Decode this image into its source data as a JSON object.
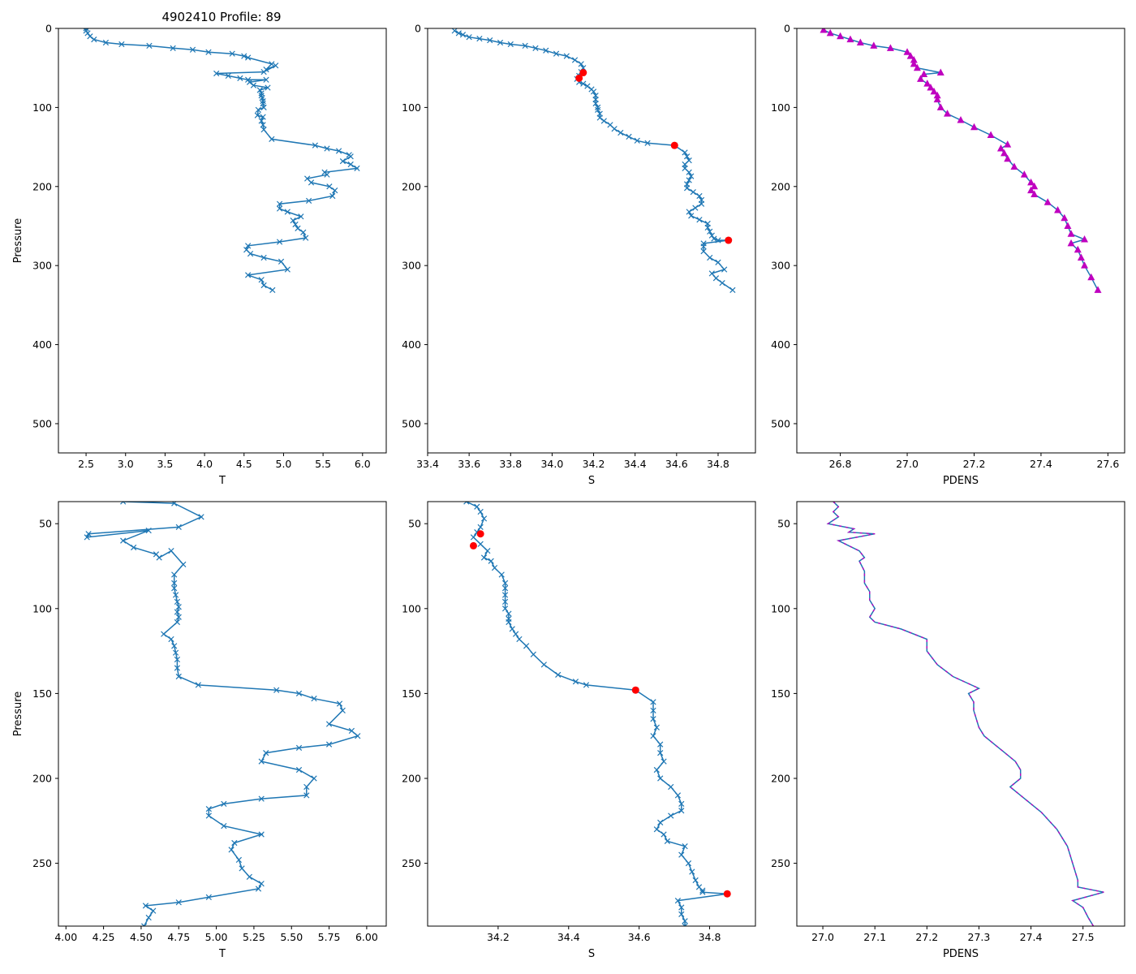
{
  "figure_title": "4902410 Profile: 89",
  "colors": {
    "line": "#1f77b4",
    "flagged": "#ff0000",
    "pdens_marker": "#bf00bf",
    "pdens_line": "#1f77b4"
  },
  "chart_data": [
    {
      "type": "line",
      "name": "temperature-full",
      "xlabel": "T",
      "ylabel": "Pressure",
      "xlim": [
        2.15,
        6.3
      ],
      "ylim": [
        537,
        0
      ],
      "xticks": [
        2.5,
        3.0,
        3.5,
        4.0,
        4.5,
        5.0,
        5.5,
        6.0
      ],
      "xtick_labels": [
        "2.5",
        "3.0",
        "3.5",
        "4.0",
        "4.5",
        "5.0",
        "5.5",
        "6.0"
      ],
      "yticks": [
        0,
        100,
        200,
        300,
        400,
        500
      ],
      "ytick_labels": [
        "0",
        "100",
        "200",
        "300",
        "400",
        "500"
      ],
      "marker": "x",
      "series": [
        {
          "name": "T profile",
          "x": [
            2.5,
            2.5,
            2.52,
            2.55,
            2.6,
            2.75,
            2.95,
            3.3,
            3.6,
            3.85,
            4.05,
            4.35,
            4.5,
            4.55,
            4.85,
            4.78,
            4.9,
            4.75,
            4.15,
            4.3,
            4.45,
            4.55,
            4.78,
            4.57,
            4.62,
            4.8,
            4.7,
            4.72,
            4.72,
            4.73,
            4.74,
            4.74,
            4.75,
            4.68,
            4.67,
            4.74,
            4.72,
            4.74,
            4.75,
            4.85,
            5.4,
            5.55,
            5.7,
            5.83,
            5.85,
            5.75,
            5.85,
            5.93,
            5.52,
            5.55,
            5.3,
            5.35,
            5.58,
            5.65,
            5.62,
            5.32,
            4.95,
            4.95,
            5.05,
            5.22,
            5.12,
            5.15,
            5.18,
            5.25,
            5.28,
            4.95,
            4.55,
            4.53,
            4.58,
            4.75,
            4.97,
            5.05,
            4.55,
            4.72,
            4.75,
            4.86
          ],
          "y": [
            0,
            3,
            6,
            10,
            14,
            18,
            20,
            22,
            25,
            27,
            30,
            32,
            35,
            37,
            45,
            52,
            47,
            55,
            57,
            60,
            63,
            65,
            65,
            68,
            72,
            75,
            78,
            82,
            85,
            88,
            92,
            95,
            100,
            103,
            110,
            112,
            117,
            122,
            128,
            140,
            148,
            152,
            155,
            160,
            162,
            168,
            172,
            177,
            182,
            185,
            190,
            195,
            200,
            205,
            212,
            218,
            222,
            228,
            232,
            238,
            243,
            248,
            253,
            258,
            265,
            270,
            275,
            280,
            285,
            290,
            295,
            305,
            312,
            318,
            325,
            331
          ]
        }
      ]
    },
    {
      "type": "line",
      "name": "salinity-full",
      "xlabel": "S",
      "ylabel": "",
      "xlim": [
        33.4,
        34.98
      ],
      "ylim": [
        537,
        0
      ],
      "xticks": [
        33.4,
        33.6,
        33.8,
        34.0,
        34.2,
        34.4,
        34.6,
        34.8
      ],
      "xtick_labels": [
        "33.4",
        "33.6",
        "33.8",
        "34.0",
        "34.2",
        "34.4",
        "34.6",
        "34.8"
      ],
      "yticks": [
        0,
        100,
        200,
        300,
        400,
        500
      ],
      "ytick_labels": [
        "0",
        "100",
        "200",
        "300",
        "400",
        "500"
      ],
      "marker": "x",
      "series": [
        {
          "name": "S profile",
          "x": [
            33.53,
            33.55,
            33.57,
            33.6,
            33.65,
            33.7,
            33.75,
            33.8,
            33.87,
            33.92,
            33.97,
            34.02,
            34.07,
            34.11,
            34.14,
            34.15,
            34.14,
            34.13,
            34.12,
            34.13,
            34.15,
            34.17,
            34.19,
            34.2,
            34.21,
            34.21,
            34.21,
            34.22,
            34.22,
            34.23,
            34.23,
            34.25,
            34.28,
            34.3,
            34.33,
            34.37,
            34.41,
            34.46,
            34.59,
            34.64,
            34.65,
            34.66,
            34.64,
            34.64,
            34.66,
            34.67,
            34.66,
            34.65,
            34.65,
            34.68,
            34.71,
            34.72,
            34.72,
            34.69,
            34.66,
            34.67,
            34.71,
            34.75,
            34.75,
            34.76,
            34.77,
            34.78,
            34.8,
            34.85,
            34.73,
            34.73,
            34.73,
            34.76,
            34.8,
            34.83,
            34.77,
            34.79,
            34.82,
            34.87
          ],
          "y": [
            3,
            6,
            8,
            11,
            13,
            15,
            18,
            20,
            22,
            25,
            28,
            32,
            35,
            40,
            45,
            50,
            55,
            60,
            64,
            68,
            70,
            73,
            77,
            80,
            85,
            90,
            95,
            100,
            103,
            108,
            113,
            117,
            122,
            127,
            132,
            137,
            142,
            145,
            148,
            157,
            162,
            167,
            172,
            177,
            182,
            187,
            192,
            197,
            202,
            207,
            212,
            217,
            222,
            227,
            232,
            237,
            242,
            247,
            252,
            257,
            262,
            266,
            268,
            268,
            272,
            276,
            282,
            290,
            296,
            305,
            310,
            316,
            322,
            331
          ]
        }
      ],
      "flagged_points": {
        "x": [
          34.15,
          34.13,
          34.59,
          34.85
        ],
        "y": [
          56,
          63,
          148,
          268
        ]
      }
    },
    {
      "type": "line",
      "name": "density-full",
      "xlabel": "PDENS",
      "ylabel": "",
      "xlim": [
        26.67,
        27.65
      ],
      "ylim": [
        537,
        0
      ],
      "xticks": [
        26.8,
        27.0,
        27.2,
        27.4,
        27.6
      ],
      "xtick_labels": [
        "26.8",
        "27.0",
        "27.2",
        "27.4",
        "27.6"
      ],
      "yticks": [
        0,
        100,
        200,
        300,
        400,
        500
      ],
      "ytick_labels": [
        "0",
        "100",
        "200",
        "300",
        "400",
        "500"
      ],
      "marker": "^",
      "series": [
        {
          "name": "PDENS profile",
          "x": [
            26.75,
            26.77,
            26.8,
            26.83,
            26.86,
            26.9,
            26.95,
            27.0,
            27.01,
            27.02,
            27.02,
            27.03,
            27.1,
            27.05,
            27.04,
            27.06,
            27.07,
            27.08,
            27.09,
            27.09,
            27.1,
            27.12,
            27.16,
            27.2,
            27.25,
            27.3,
            27.28,
            27.29,
            27.3,
            27.32,
            27.35,
            27.37,
            27.38,
            27.37,
            27.38,
            27.42,
            27.45,
            27.47,
            27.48,
            27.49,
            27.53,
            27.49,
            27.51,
            27.52,
            27.53,
            27.55,
            27.57
          ],
          "y": [
            2,
            6,
            10,
            14,
            18,
            22,
            25,
            30,
            35,
            40,
            45,
            50,
            56,
            58,
            64,
            70,
            75,
            80,
            85,
            90,
            100,
            108,
            116,
            125,
            135,
            147,
            152,
            158,
            165,
            175,
            185,
            195,
            200,
            205,
            210,
            220,
            230,
            240,
            250,
            260,
            267,
            272,
            280,
            290,
            300,
            315,
            331
          ]
        }
      ]
    },
    {
      "type": "line",
      "name": "temperature-zoom",
      "xlabel": "T",
      "ylabel": "Pressure",
      "xlim": [
        3.95,
        6.13
      ],
      "ylim": [
        287,
        37
      ],
      "xticks": [
        4.0,
        4.25,
        4.5,
        4.75,
        5.0,
        5.25,
        5.5,
        5.75,
        6.0
      ],
      "xtick_labels": [
        "4.00",
        "4.25",
        "4.50",
        "4.75",
        "5.00",
        "5.25",
        "5.50",
        "5.75",
        "6.00"
      ],
      "yticks": [
        50,
        100,
        150,
        200,
        250
      ],
      "ytick_labels": [
        "50",
        "100",
        "150",
        "200",
        "250"
      ],
      "marker": "x",
      "series": [
        {
          "name": "T profile",
          "x": [
            4.38,
            4.72,
            4.9,
            4.75,
            4.15,
            4.14,
            4.55,
            4.38,
            4.45,
            4.6,
            4.62,
            4.7,
            4.78,
            4.72,
            4.72,
            4.72,
            4.73,
            4.74,
            4.75,
            4.74,
            4.75,
            4.74,
            4.65,
            4.7,
            4.72,
            4.73,
            4.74,
            4.74,
            4.75,
            4.88,
            5.4,
            5.55,
            5.65,
            5.82,
            5.84,
            5.75,
            5.9,
            5.94,
            5.75,
            5.55,
            5.33,
            5.3,
            5.55,
            5.65,
            5.6,
            5.6,
            5.3,
            5.05,
            4.95,
            4.95,
            5.05,
            5.3,
            5.12,
            5.1,
            5.15,
            5.17,
            5.22,
            5.3,
            5.28,
            4.95,
            4.75,
            4.53,
            4.58,
            4.55,
            4.52
          ],
          "y": [
            37,
            38,
            46,
            52,
            56,
            58,
            54,
            60,
            64,
            68,
            70,
            66,
            74,
            80,
            85,
            88,
            92,
            96,
            99,
            102,
            105,
            108,
            115,
            118,
            122,
            126,
            130,
            135,
            140,
            145,
            148,
            150,
            153,
            156,
            160,
            168,
            172,
            175,
            180,
            182,
            185,
            190,
            195,
            200,
            205,
            210,
            212,
            215,
            218,
            222,
            228,
            233,
            238,
            242,
            248,
            253,
            258,
            262,
            265,
            270,
            273,
            275,
            278,
            282,
            287
          ]
        }
      ]
    },
    {
      "type": "line",
      "name": "salinity-zoom",
      "xlabel": "S",
      "ylabel": "",
      "xlim": [
        34.0,
        34.93
      ],
      "ylim": [
        287,
        37
      ],
      "xticks": [
        34.2,
        34.4,
        34.6,
        34.8
      ],
      "xtick_labels": [
        "34.2",
        "34.4",
        "34.6",
        "34.8"
      ],
      "yticks": [
        50,
        100,
        150,
        200,
        250
      ],
      "ytick_labels": [
        "50",
        "100",
        "150",
        "200",
        "250"
      ],
      "marker": "x",
      "series": [
        {
          "name": "S profile",
          "x": [
            34.11,
            34.14,
            34.15,
            34.16,
            34.15,
            34.14,
            34.13,
            34.15,
            34.17,
            34.16,
            34.18,
            34.19,
            34.21,
            34.22,
            34.22,
            34.22,
            34.22,
            34.22,
            34.23,
            34.23,
            34.23,
            34.24,
            34.25,
            34.26,
            34.28,
            34.3,
            34.33,
            34.37,
            34.42,
            34.45,
            34.59,
            34.64,
            34.64,
            34.64,
            34.65,
            34.64,
            34.66,
            34.66,
            34.67,
            34.65,
            34.66,
            34.69,
            34.71,
            34.72,
            34.72,
            34.69,
            34.66,
            34.65,
            34.67,
            34.68,
            34.73,
            34.72,
            34.74,
            34.75,
            34.76,
            34.77,
            34.78,
            34.78,
            34.85,
            34.71,
            34.72,
            34.72,
            34.73,
            34.73
          ],
          "y": [
            37,
            40,
            43,
            47,
            52,
            55,
            58,
            62,
            66,
            70,
            72,
            76,
            80,
            85,
            88,
            92,
            96,
            100,
            103,
            106,
            108,
            112,
            115,
            118,
            122,
            127,
            133,
            139,
            143,
            145,
            148,
            155,
            160,
            165,
            170,
            175,
            180,
            185,
            190,
            195,
            200,
            205,
            210,
            215,
            219,
            222,
            226,
            230,
            233,
            237,
            240,
            245,
            250,
            255,
            260,
            264,
            266,
            267,
            268,
            272,
            276,
            280,
            284,
            287
          ]
        }
      ],
      "flagged_points": {
        "x": [
          34.15,
          34.13,
          34.59,
          34.85
        ],
        "y": [
          56,
          63,
          148,
          268
        ]
      }
    },
    {
      "type": "line",
      "name": "density-zoom",
      "xlabel": "PDENS",
      "ylabel": "",
      "xlim": [
        26.95,
        27.58
      ],
      "ylim": [
        287,
        37
      ],
      "xticks": [
        27.0,
        27.1,
        27.2,
        27.3,
        27.4,
        27.5
      ],
      "xtick_labels": [
        "27.0",
        "27.1",
        "27.2",
        "27.3",
        "27.4",
        "27.5"
      ],
      "yticks": [
        50,
        100,
        150,
        200,
        250
      ],
      "ytick_labels": [
        "50",
        "100",
        "150",
        "200",
        "250"
      ],
      "marker": "none",
      "series": [
        {
          "name": "PDENS profile",
          "x": [
            27.02,
            27.03,
            27.02,
            27.03,
            27.01,
            27.06,
            27.05,
            27.1,
            27.03,
            27.05,
            27.07,
            27.08,
            27.07,
            27.08,
            27.08,
            27.09,
            27.09,
            27.1,
            27.09,
            27.1,
            27.15,
            27.2,
            27.2,
            27.22,
            27.25,
            27.3,
            27.28,
            27.29,
            27.29,
            27.3,
            27.31,
            27.33,
            27.35,
            27.37,
            27.38,
            27.38,
            27.36,
            27.38,
            27.4,
            27.42,
            27.45,
            27.47,
            27.48,
            27.49,
            27.49,
            27.54,
            27.48,
            27.5,
            27.51,
            27.52
          ],
          "y": [
            37,
            40,
            43,
            46,
            50,
            53,
            55,
            56,
            60,
            63,
            66,
            70,
            72,
            78,
            85,
            90,
            95,
            100,
            105,
            108,
            112,
            118,
            125,
            133,
            140,
            147,
            150,
            155,
            160,
            170,
            175,
            180,
            185,
            190,
            195,
            200,
            205,
            210,
            215,
            220,
            230,
            240,
            250,
            260,
            264,
            267,
            272,
            276,
            282,
            287
          ]
        }
      ]
    }
  ]
}
